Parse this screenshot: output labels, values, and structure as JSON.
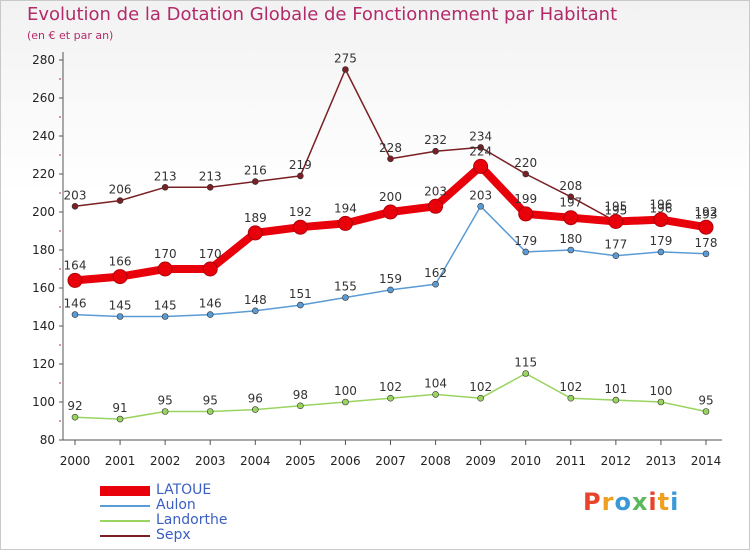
{
  "header": {
    "title": "Evolution de la Dotation Globale de Fonctionnement par Habitant",
    "subtitle": "(en € et par an)"
  },
  "logo": {
    "letters": [
      "P",
      "r",
      "o",
      "x",
      "i",
      "t",
      "i"
    ],
    "colors": [
      "#e8442c",
      "#f0a020",
      "#3a9ad9",
      "#5cb85c",
      "#e8442c",
      "#f0a020",
      "#3a9ad9"
    ]
  },
  "chart_data": {
    "type": "line",
    "x": [
      "2000",
      "2001",
      "2002",
      "2003",
      "2004",
      "2005",
      "2006",
      "2007",
      "2008",
      "2009",
      "2010",
      "2011",
      "2012",
      "2013",
      "2014"
    ],
    "ylim": [
      80,
      280
    ],
    "yticks": [
      80,
      100,
      120,
      140,
      160,
      180,
      200,
      220,
      240,
      260,
      280
    ],
    "grid": false,
    "legend_position": "bottom-left",
    "series": [
      {
        "name": "Sepx",
        "color": "#7a1f24",
        "emphasis": false,
        "values": [
          203,
          206,
          213,
          213,
          216,
          219,
          275,
          228,
          232,
          234,
          220,
          208,
          195,
          196,
          193
        ]
      },
      {
        "name": "Aulon",
        "color": "#5b9bd5",
        "emphasis": false,
        "values": [
          146,
          145,
          145,
          146,
          148,
          151,
          155,
          159,
          162,
          203,
          179,
          180,
          177,
          179,
          178
        ]
      },
      {
        "name": "Landorthe",
        "color": "#9ad460",
        "emphasis": false,
        "values": [
          92,
          91,
          95,
          95,
          96,
          98,
          100,
          102,
          104,
          102,
          115,
          102,
          101,
          100,
          95
        ]
      },
      {
        "name": "LATOUE",
        "color": "#e8000b",
        "emphasis": true,
        "values": [
          164,
          166,
          170,
          170,
          189,
          192,
          194,
          200,
          203,
          224,
          199,
          197,
          195,
          196,
          192
        ]
      }
    ]
  },
  "legend": {
    "items": [
      {
        "name": "LATOUE",
        "color": "#e8000b"
      },
      {
        "name": "Aulon",
        "color": "#5b9bd5"
      },
      {
        "name": "Landorthe",
        "color": "#9ad460"
      },
      {
        "name": "Sepx",
        "color": "#7a1f24"
      }
    ]
  }
}
